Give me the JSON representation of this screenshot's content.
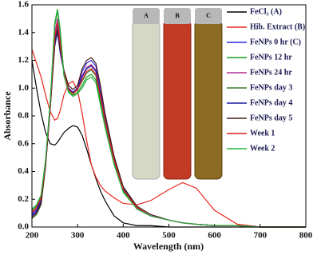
{
  "chart_data": {
    "type": "line",
    "xlabel": "Wavelength (nm)",
    "ylabel": "Absorbance",
    "x": [
      200,
      210,
      220,
      230,
      240,
      250,
      256,
      262,
      270,
      280,
      290,
      300,
      310,
      320,
      330,
      340,
      350,
      360,
      380,
      400,
      430,
      460,
      500,
      530,
      560,
      600,
      650,
      700,
      800
    ],
    "series": [
      {
        "name": "FeCl₃ (A)",
        "color": "#000000",
        "values": [
          1.2,
          1.0,
          0.82,
          0.68,
          0.6,
          0.59,
          0.61,
          0.64,
          0.68,
          0.71,
          0.73,
          0.72,
          0.66,
          0.56,
          0.45,
          0.35,
          0.26,
          0.19,
          0.08,
          0.03,
          0.01,
          0.01,
          0,
          0,
          0,
          0,
          0,
          0,
          0
        ]
      },
      {
        "name": "Hib. Extract (B)",
        "color": "#e8281e",
        "values": [
          1.28,
          1.18,
          1.08,
          0.95,
          0.83,
          0.77,
          0.78,
          0.84,
          0.95,
          1.03,
          1.05,
          0.98,
          0.82,
          0.62,
          0.45,
          0.36,
          0.3,
          0.26,
          0.21,
          0.17,
          0.16,
          0.19,
          0.27,
          0.32,
          0.28,
          0.12,
          0.02,
          0,
          0
        ]
      },
      {
        "name": "FeNPs 0 hr (C)",
        "color": "#2a2ae0",
        "values": [
          0.08,
          0.11,
          0.18,
          0.45,
          0.85,
          1.3,
          1.4,
          1.25,
          1.12,
          1.0,
          0.97,
          1.0,
          1.12,
          1.18,
          1.2,
          1.16,
          1.0,
          0.8,
          0.5,
          0.28,
          0.14,
          0.08,
          0.05,
          0.03,
          0.02,
          0.01,
          0.01,
          0,
          0
        ]
      },
      {
        "name": "FeNPs 12 hr",
        "color": "#1a9e1a",
        "values": [
          0.12,
          0.15,
          0.22,
          0.48,
          0.9,
          1.47,
          1.57,
          1.42,
          1.1,
          0.98,
          0.95,
          0.97,
          1.02,
          1.08,
          1.1,
          1.06,
          0.9,
          0.74,
          0.46,
          0.26,
          0.13,
          0.08,
          0.05,
          0.03,
          0.02,
          0.01,
          0.01,
          0,
          0
        ]
      },
      {
        "name": "FeNPs 24 hr",
        "color": "#b03090",
        "values": [
          0.1,
          0.13,
          0.2,
          0.46,
          0.87,
          1.4,
          1.5,
          1.35,
          1.11,
          1.0,
          0.97,
          1.0,
          1.09,
          1.15,
          1.17,
          1.13,
          0.97,
          0.78,
          0.49,
          0.27,
          0.14,
          0.08,
          0.05,
          0.03,
          0.02,
          0.01,
          0.01,
          0,
          0
        ]
      },
      {
        "name": "FeNPs day 3",
        "color": "#3a7a2a",
        "values": [
          0.06,
          0.09,
          0.16,
          0.44,
          0.88,
          1.45,
          1.55,
          1.4,
          1.1,
          0.99,
          0.96,
          0.99,
          1.05,
          1.11,
          1.13,
          1.09,
          0.93,
          0.76,
          0.47,
          0.27,
          0.13,
          0.08,
          0.05,
          0.03,
          0.02,
          0.01,
          0.01,
          0,
          0
        ]
      },
      {
        "name": "FeNPs day 4",
        "color": "#1c1ca0",
        "values": [
          0.09,
          0.12,
          0.19,
          0.45,
          0.86,
          1.35,
          1.45,
          1.3,
          1.12,
          1.0,
          0.97,
          1.0,
          1.08,
          1.14,
          1.16,
          1.12,
          0.96,
          0.78,
          0.49,
          0.28,
          0.14,
          0.08,
          0.05,
          0.03,
          0.02,
          0.01,
          0.01,
          0,
          0
        ]
      },
      {
        "name": "FeNPs day 5",
        "color": "#4a1a1a",
        "values": [
          0.07,
          0.1,
          0.17,
          0.45,
          0.85,
          1.32,
          1.42,
          1.27,
          1.13,
          1.02,
          0.99,
          1.02,
          1.14,
          1.2,
          1.22,
          1.18,
          1.02,
          0.82,
          0.51,
          0.29,
          0.15,
          0.09,
          0.05,
          0.03,
          0.02,
          0.01,
          0.01,
          0,
          0
        ]
      },
      {
        "name": "Week 1",
        "color": "#e02020",
        "values": [
          0.11,
          0.14,
          0.21,
          0.47,
          0.87,
          1.37,
          1.47,
          1.32,
          1.11,
          0.99,
          0.96,
          0.99,
          1.06,
          1.12,
          1.14,
          1.1,
          0.94,
          0.77,
          0.48,
          0.27,
          0.14,
          0.08,
          0.05,
          0.03,
          0.02,
          0.01,
          0.01,
          0,
          0
        ]
      },
      {
        "name": "Week 2",
        "color": "#22b040",
        "values": [
          0.13,
          0.16,
          0.23,
          0.49,
          0.9,
          1.46,
          1.56,
          1.41,
          1.09,
          0.97,
          0.94,
          0.96,
          1.0,
          1.06,
          1.08,
          1.04,
          0.88,
          0.72,
          0.45,
          0.25,
          0.13,
          0.08,
          0.05,
          0.03,
          0.02,
          0.01,
          0.01,
          0,
          0
        ]
      }
    ],
    "xlim": [
      200,
      800
    ],
    "xticks": [
      200,
      300,
      400,
      500,
      600,
      700,
      800
    ],
    "ylim": [
      0,
      1.6
    ],
    "yticks": [
      {
        "value": 0,
        "label": "0.0"
      },
      0.2,
      0.4,
      0.6,
      0.8,
      {
        "value": 1,
        "label": "1.0"
      },
      1.2,
      1.4,
      1.6
    ],
    "grid": false,
    "legend": "upper right",
    "inset_labels": [
      "A",
      "B",
      "C"
    ]
  }
}
